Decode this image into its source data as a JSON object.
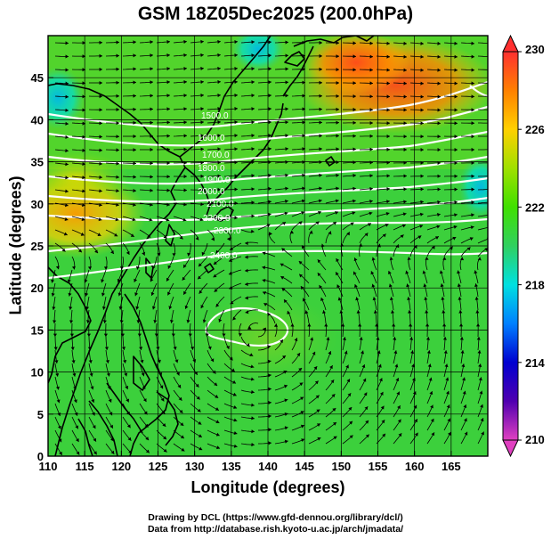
{
  "title": "GSM 18Z05Dec2025 (200.0hPa)",
  "x_axis_label": "Longitude (degrees)",
  "y_axis_label": "Latitude  (degrees)",
  "credit_line_1": "Drawing by DCL (https://www.gfd-dennou.org/library/dcl/)",
  "credit_line_2": "Data from http://database.rish.kyoto-u.ac.jp/arch/jmadata/",
  "map": {
    "lon_range": [
      110,
      170
    ],
    "lat_range": [
      0,
      50
    ],
    "lon_ticks": [
      110,
      115,
      120,
      125,
      130,
      135,
      140,
      145,
      150,
      155,
      160,
      165
    ],
    "lat_ticks": [
      0,
      5,
      10,
      15,
      20,
      25,
      30,
      35,
      40,
      45
    ],
    "grid": true,
    "shaded_field": "temperature",
    "colorbar": {
      "min": 210,
      "max": 230,
      "labels": [
        210,
        214,
        218,
        222,
        226,
        230
      ],
      "stops": [
        "#e040c0",
        "#5000b0",
        "#0000d0",
        "#0080ff",
        "#00e0e0",
        "#30d060",
        "#40e000",
        "#a0e000",
        "#ffd000",
        "#ff8000",
        "#ff3030"
      ]
    },
    "contour_labels": [
      "1500.0",
      "1600.0",
      "1700.0",
      "1800.0",
      "1900.0",
      "2000.0",
      "2100.0",
      "2200.0",
      "2300.0",
      "2400.0"
    ],
    "cyclone_center": {
      "lon": 138.5,
      "lat": 15.0
    }
  }
}
